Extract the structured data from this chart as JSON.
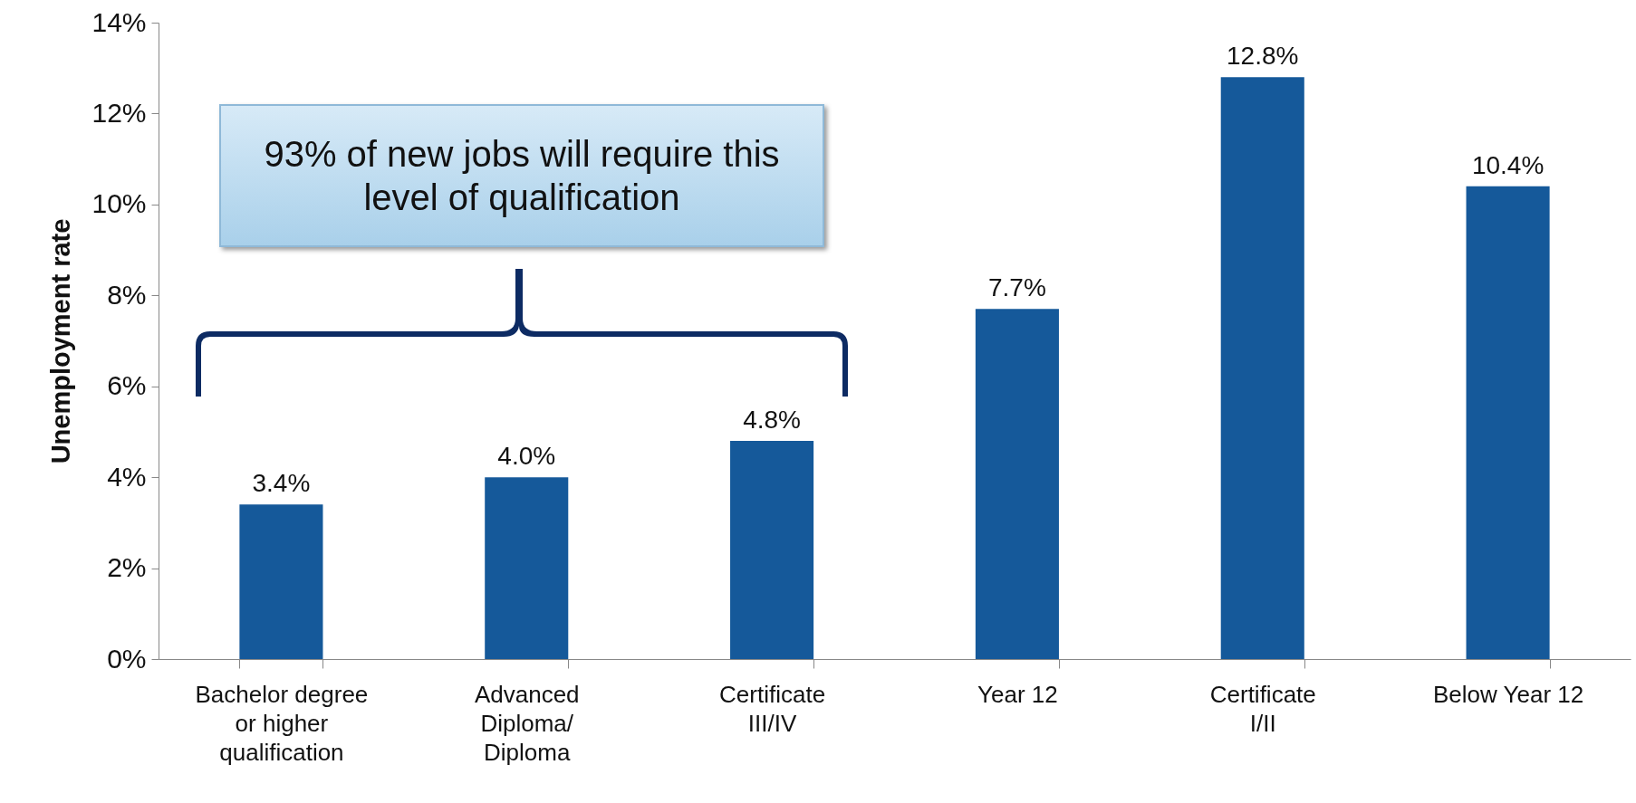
{
  "chart_data": {
    "type": "bar",
    "ylabel": "Unemployment rate",
    "categories": [
      "Bachelor degree or higher qualification",
      "Advanced Diploma/ Diploma",
      "Certificate III/IV",
      "Year 12",
      "Certificate I/II",
      "Below Year 12"
    ],
    "values": [
      3.4,
      4.0,
      4.8,
      7.7,
      12.8,
      10.4
    ],
    "value_labels": [
      "3.4%",
      "4.0%",
      "4.8%",
      "7.7%",
      "12.8%",
      "10.4%"
    ],
    "color": "#15599a",
    "ylim": [
      0,
      14
    ],
    "yticks": [
      {
        "value": 0,
        "label": "0%"
      },
      {
        "value": 2,
        "label": "2%"
      },
      {
        "value": 4,
        "label": "4%"
      },
      {
        "value": 6,
        "label": "6%"
      },
      {
        "value": 8,
        "label": "8%"
      },
      {
        "value": 10,
        "label": "10%"
      },
      {
        "value": 12,
        "label": "12%"
      },
      {
        "value": 14,
        "label": "14%"
      }
    ],
    "grid": false,
    "annotations": [
      "93% of new jobs will require this level of qualification"
    ]
  }
}
